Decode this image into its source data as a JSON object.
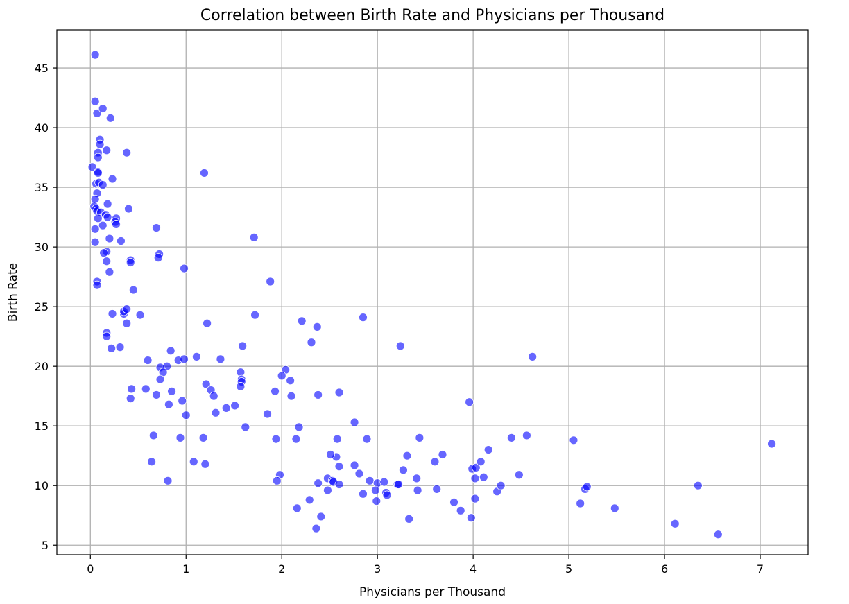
{
  "chart_data": {
    "type": "scatter",
    "title": "Correlation between Birth Rate and Physicians per Thousand",
    "xlabel": "Physicians per Thousand",
    "ylabel": "Birth Rate",
    "xlim": [
      -0.35,
      7.5
    ],
    "ylim": [
      4.2,
      48.2
    ],
    "xticks": [
      0,
      1,
      2,
      3,
      4,
      5,
      6,
      7
    ],
    "yticks": [
      5,
      10,
      15,
      20,
      25,
      30,
      35,
      40,
      45
    ],
    "grid": true,
    "marker_color": "#0000ff",
    "marker_alpha": 0.6,
    "points": [
      [
        0.05,
        46.1
      ],
      [
        0.05,
        42.2
      ],
      [
        0.07,
        41.2
      ],
      [
        0.13,
        41.6
      ],
      [
        0.21,
        40.8
      ],
      [
        0.1,
        39.0
      ],
      [
        0.1,
        38.6
      ],
      [
        0.08,
        37.9
      ],
      [
        0.08,
        37.5
      ],
      [
        0.17,
        38.1
      ],
      [
        0.38,
        37.9
      ],
      [
        0.02,
        36.7
      ],
      [
        0.08,
        36.3
      ],
      [
        0.08,
        36.2
      ],
      [
        0.23,
        35.7
      ],
      [
        0.06,
        35.3
      ],
      [
        0.09,
        35.4
      ],
      [
        0.13,
        35.2
      ],
      [
        0.07,
        34.5
      ],
      [
        0.05,
        34.0
      ],
      [
        0.18,
        33.6
      ],
      [
        0.04,
        33.4
      ],
      [
        0.06,
        33.2
      ],
      [
        0.07,
        33.0
      ],
      [
        0.11,
        32.9
      ],
      [
        0.16,
        32.7
      ],
      [
        0.18,
        32.5
      ],
      [
        0.27,
        32.4
      ],
      [
        0.08,
        32.4
      ],
      [
        0.26,
        32.1
      ],
      [
        0.27,
        31.9
      ],
      [
        0.13,
        31.8
      ],
      [
        0.05,
        31.5
      ],
      [
        0.4,
        33.2
      ],
      [
        0.2,
        30.7
      ],
      [
        0.05,
        30.4
      ],
      [
        0.32,
        30.5
      ],
      [
        0.17,
        29.6
      ],
      [
        0.14,
        29.5
      ],
      [
        0.42,
        28.9
      ],
      [
        0.42,
        28.7
      ],
      [
        0.17,
        28.8
      ],
      [
        0.2,
        27.9
      ],
      [
        0.07,
        27.1
      ],
      [
        0.07,
        26.8
      ],
      [
        0.45,
        26.4
      ],
      [
        0.23,
        24.4
      ],
      [
        0.35,
        24.4
      ],
      [
        0.35,
        24.6
      ],
      [
        0.38,
        24.8
      ],
      [
        0.52,
        24.3
      ],
      [
        0.38,
        23.6
      ],
      [
        0.17,
        22.8
      ],
      [
        0.17,
        22.5
      ],
      [
        0.22,
        21.5
      ],
      [
        0.31,
        21.6
      ],
      [
        0.69,
        31.6
      ],
      [
        0.72,
        29.4
      ],
      [
        0.71,
        29.1
      ],
      [
        0.98,
        28.2
      ],
      [
        1.19,
        36.2
      ],
      [
        1.71,
        30.8
      ],
      [
        1.88,
        27.1
      ],
      [
        1.72,
        24.3
      ],
      [
        1.22,
        23.6
      ],
      [
        0.84,
        21.3
      ],
      [
        0.6,
        20.5
      ],
      [
        0.92,
        20.5
      ],
      [
        0.98,
        20.6
      ],
      [
        0.8,
        20.0
      ],
      [
        0.73,
        19.9
      ],
      [
        0.76,
        19.5
      ],
      [
        0.73,
        18.9
      ],
      [
        1.11,
        20.8
      ],
      [
        1.36,
        20.6
      ],
      [
        1.21,
        18.5
      ],
      [
        1.26,
        18.0
      ],
      [
        1.29,
        17.5
      ],
      [
        0.43,
        18.1
      ],
      [
        0.58,
        18.1
      ],
      [
        0.85,
        17.9
      ],
      [
        0.69,
        17.6
      ],
      [
        0.42,
        17.3
      ],
      [
        0.96,
        17.1
      ],
      [
        0.82,
        16.8
      ],
      [
        1.0,
        15.9
      ],
      [
        1.42,
        16.5
      ],
      [
        1.51,
        16.7
      ],
      [
        1.31,
        16.1
      ],
      [
        1.57,
        19.5
      ],
      [
        1.58,
        18.9
      ],
      [
        1.58,
        18.7
      ],
      [
        1.57,
        18.3
      ],
      [
        1.59,
        21.7
      ],
      [
        0.66,
        14.2
      ],
      [
        0.94,
        14.0
      ],
      [
        1.18,
        14.0
      ],
      [
        1.62,
        14.9
      ],
      [
        1.08,
        12.0
      ],
      [
        1.2,
        11.8
      ],
      [
        0.64,
        12.0
      ],
      [
        0.81,
        10.4
      ],
      [
        2.21,
        23.8
      ],
      [
        2.37,
        23.3
      ],
      [
        2.31,
        22.0
      ],
      [
        2.85,
        24.1
      ],
      [
        3.24,
        21.7
      ],
      [
        2.04,
        19.7
      ],
      [
        2.0,
        19.2
      ],
      [
        2.09,
        18.8
      ],
      [
        1.93,
        17.9
      ],
      [
        2.1,
        17.5
      ],
      [
        2.38,
        17.6
      ],
      [
        2.6,
        17.8
      ],
      [
        1.85,
        16.0
      ],
      [
        2.76,
        15.3
      ],
      [
        2.18,
        14.9
      ],
      [
        1.94,
        13.9
      ],
      [
        2.15,
        13.9
      ],
      [
        2.58,
        13.9
      ],
      [
        2.89,
        13.9
      ],
      [
        3.44,
        14.0
      ],
      [
        2.57,
        12.4
      ],
      [
        2.51,
        12.6
      ],
      [
        2.6,
        11.6
      ],
      [
        2.76,
        11.7
      ],
      [
        3.31,
        12.5
      ],
      [
        3.27,
        11.3
      ],
      [
        3.6,
        12.0
      ],
      [
        3.68,
        12.6
      ],
      [
        3.96,
        17.0
      ],
      [
        4.62,
        20.8
      ],
      [
        1.98,
        10.9
      ],
      [
        1.95,
        10.4
      ],
      [
        2.38,
        10.2
      ],
      [
        2.48,
        10.6
      ],
      [
        2.53,
        10.4
      ],
      [
        2.54,
        10.3
      ],
      [
        2.6,
        10.1
      ],
      [
        2.81,
        11.0
      ],
      [
        2.92,
        10.4
      ],
      [
        3.0,
        10.2
      ],
      [
        3.07,
        10.3
      ],
      [
        3.21,
        10.1
      ],
      [
        3.22,
        10.1
      ],
      [
        2.48,
        9.6
      ],
      [
        2.85,
        9.3
      ],
      [
        2.98,
        9.6
      ],
      [
        3.09,
        9.4
      ],
      [
        3.1,
        9.2
      ],
      [
        3.42,
        9.6
      ],
      [
        3.62,
        9.7
      ],
      [
        3.41,
        10.6
      ],
      [
        2.99,
        8.7
      ],
      [
        2.29,
        8.8
      ],
      [
        2.16,
        8.1
      ],
      [
        2.41,
        7.4
      ],
      [
        2.36,
        6.4
      ],
      [
        3.33,
        7.2
      ],
      [
        3.8,
        8.6
      ],
      [
        3.87,
        7.9
      ],
      [
        3.98,
        7.3
      ],
      [
        4.02,
        8.9
      ],
      [
        3.99,
        11.4
      ],
      [
        4.03,
        11.5
      ],
      [
        4.08,
        12.0
      ],
      [
        4.16,
        13.0
      ],
      [
        4.11,
        10.7
      ],
      [
        4.02,
        10.6
      ],
      [
        4.25,
        9.5
      ],
      [
        4.29,
        10.0
      ],
      [
        4.4,
        14.0
      ],
      [
        4.56,
        14.2
      ],
      [
        4.48,
        10.9
      ],
      [
        5.05,
        13.8
      ],
      [
        5.12,
        8.5
      ],
      [
        5.17,
        9.7
      ],
      [
        5.19,
        9.9
      ],
      [
        5.48,
        8.1
      ],
      [
        6.11,
        6.8
      ],
      [
        6.35,
        10.0
      ],
      [
        6.56,
        5.9
      ],
      [
        7.12,
        13.5
      ]
    ]
  }
}
